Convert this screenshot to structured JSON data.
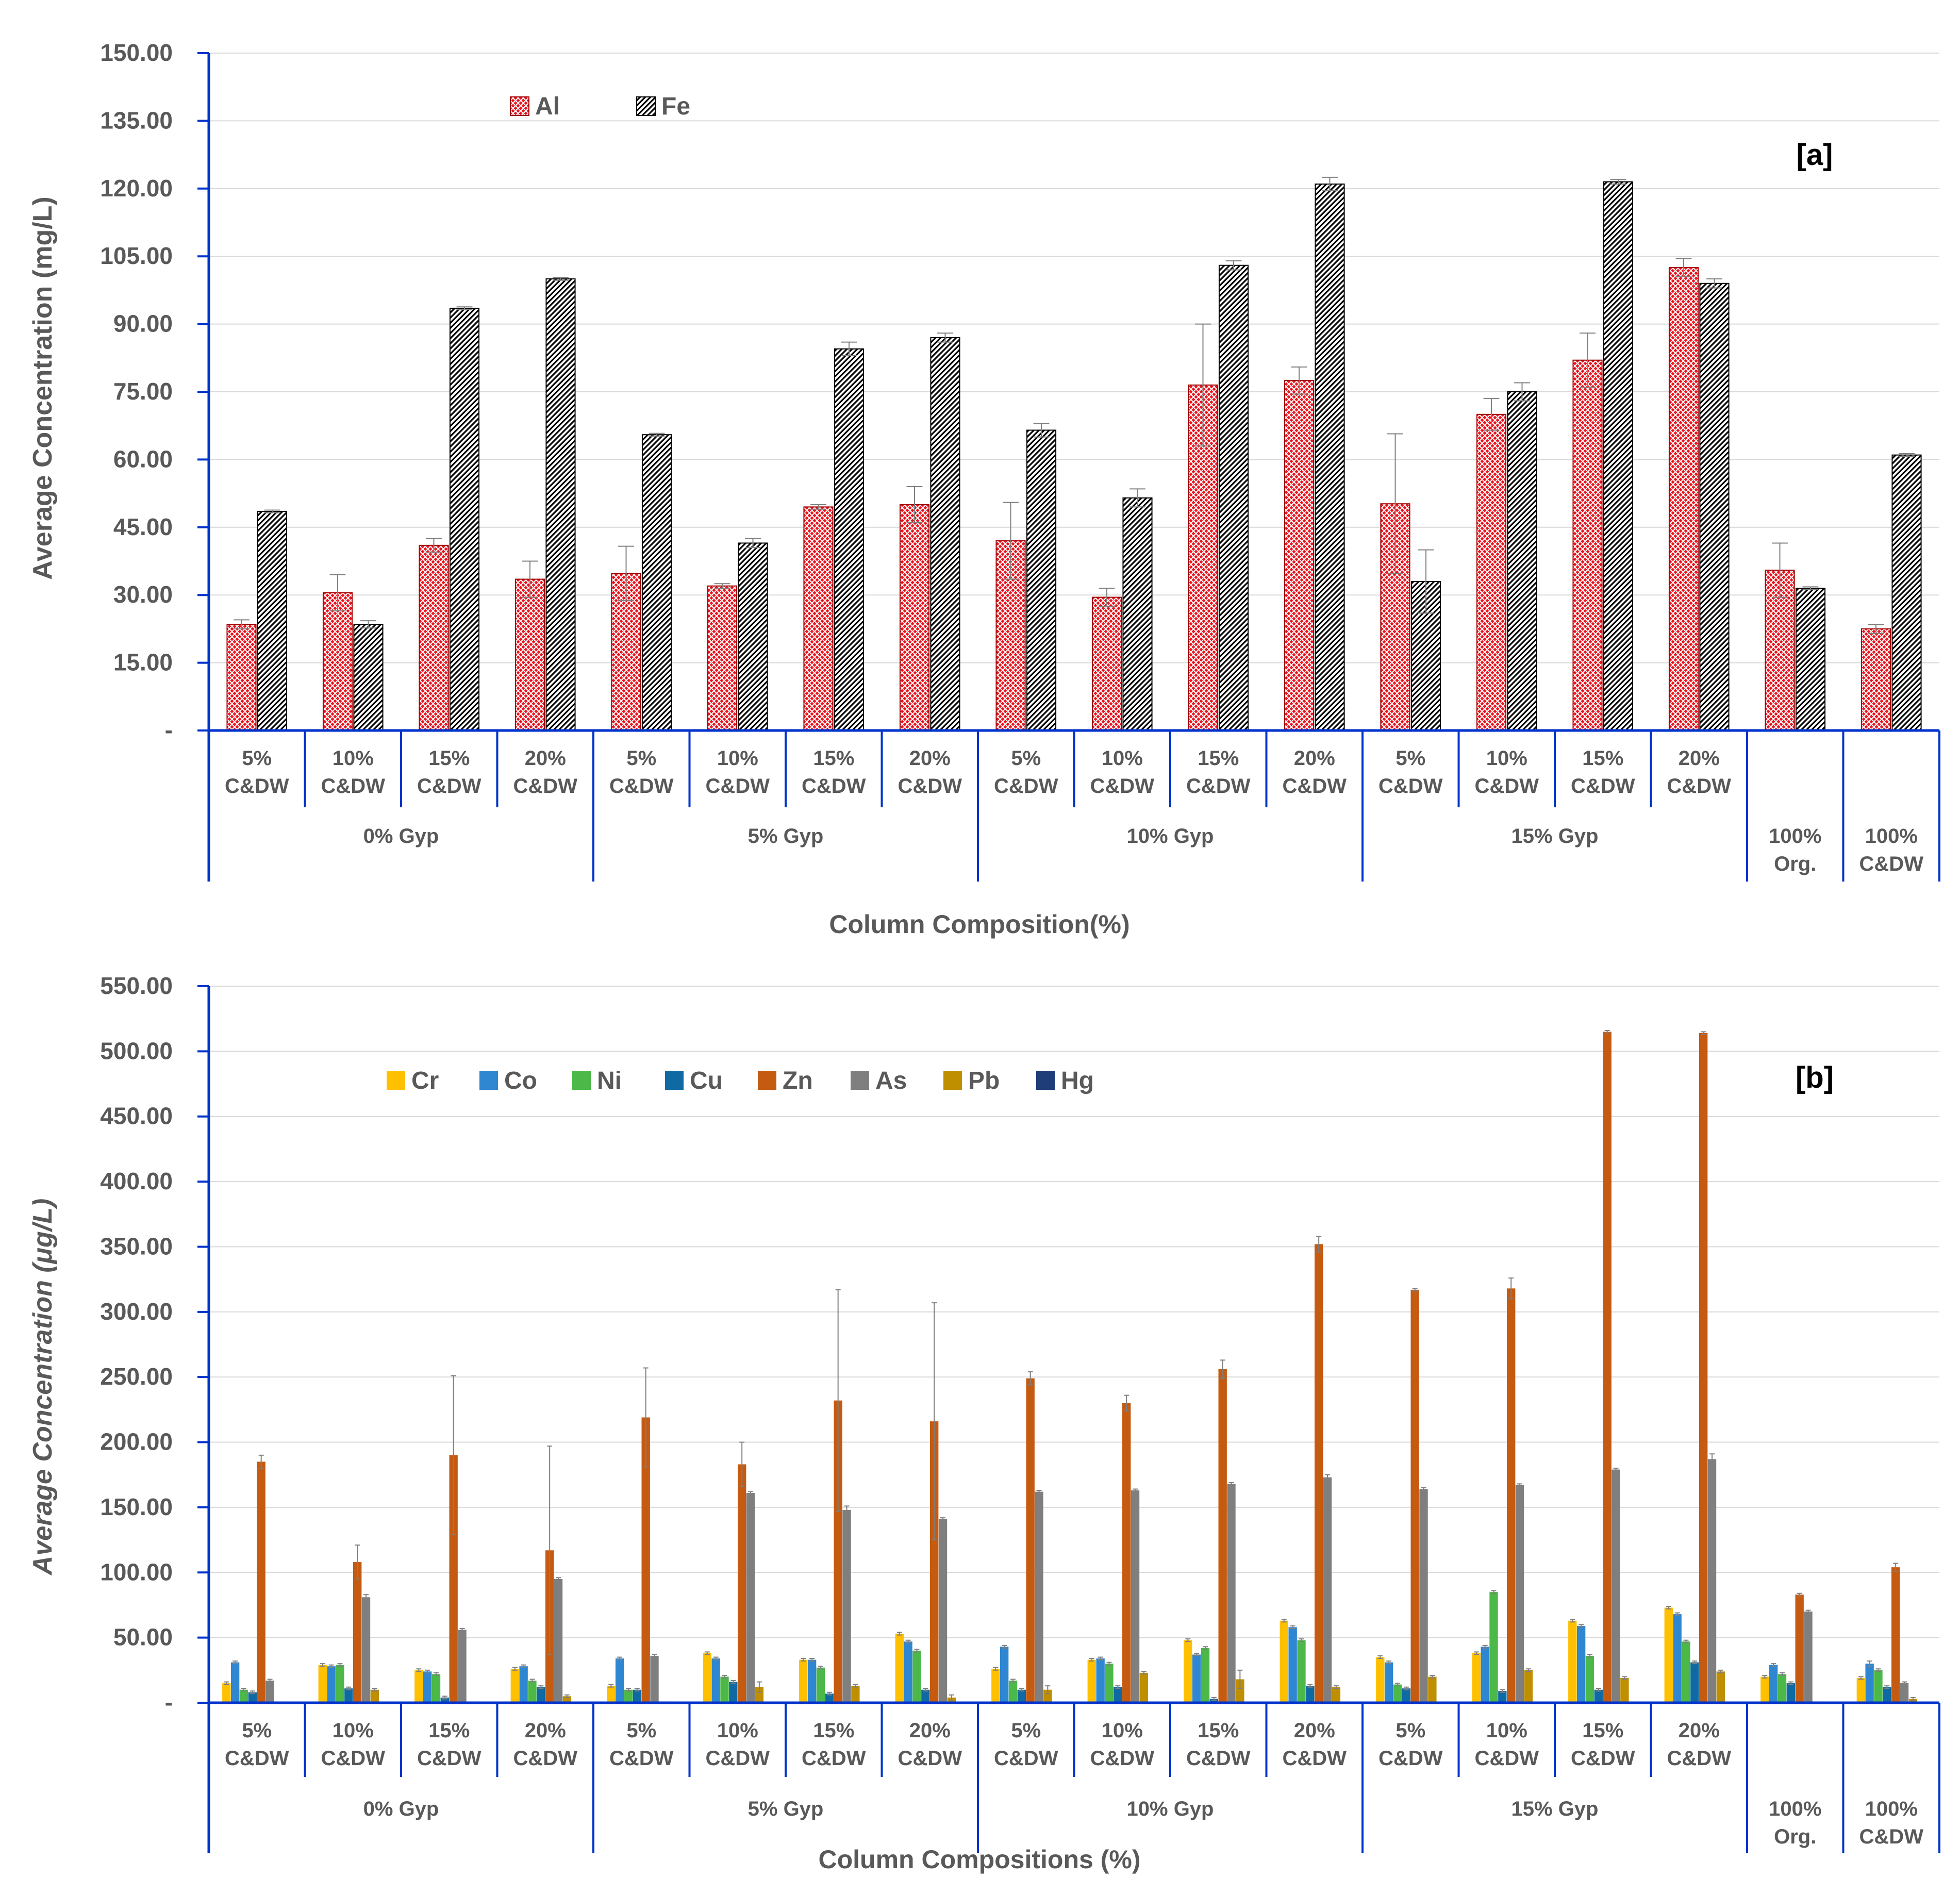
{
  "chart_data": [
    {
      "type": "bar",
      "panel_label": "[a]",
      "ylabel": "Average Concentration (mg/L)",
      "xlabel": "Column Composition(%)",
      "ylim": [
        0,
        150
      ],
      "y_ticks": [
        "-",
        "15.00",
        "30.00",
        "45.00",
        "60.00",
        "75.00",
        "90.00",
        "105.00",
        "120.00",
        "135.00",
        "150.00"
      ],
      "grid": true,
      "legend_position": "top-left",
      "categories": [
        "5% C&DW",
        "10% C&DW",
        "15% C&DW",
        "20% C&DW",
        "5% C&DW",
        "10% C&DW",
        "15% C&DW",
        "20% C&DW",
        "5% C&DW",
        "10% C&DW",
        "15% C&DW",
        "20% C&DW",
        "5% C&DW",
        "10% C&DW",
        "15% C&DW",
        "20% C&DW",
        "",
        ""
      ],
      "groups": [
        {
          "label": "0% Gyp",
          "span": 4
        },
        {
          "label": "5% Gyp",
          "span": 4
        },
        {
          "label": "10% Gyp",
          "span": 4
        },
        {
          "label": "15% Gyp",
          "span": 4
        },
        {
          "label": "100% Org.",
          "span": 1
        },
        {
          "label": "100% C&DW",
          "span": 1
        }
      ],
      "series": [
        {
          "name": "Al",
          "color": "#e8141e",
          "pattern": "red-lattice",
          "values": [
            23.5,
            30.5,
            41.0,
            33.5,
            34.8,
            32.0,
            49.5,
            50.0,
            42.0,
            29.5,
            76.5,
            77.5,
            50.2,
            70.0,
            82.0,
            102.5,
            35.5,
            22.5
          ],
          "errors": [
            1.0,
            4.0,
            1.5,
            4.0,
            6.0,
            0.5,
            0.5,
            4.0,
            8.5,
            2.0,
            13.5,
            3.0,
            15.5,
            3.5,
            6.0,
            2.0,
            6.0,
            1.0
          ]
        },
        {
          "name": "Fe",
          "color": "#000000",
          "pattern": "diagonal-hatch",
          "values": [
            48.5,
            23.5,
            93.5,
            100.0,
            65.5,
            41.5,
            84.5,
            87.0,
            66.5,
            51.5,
            103.0,
            121.0,
            33.0,
            75.0,
            121.5,
            99.0,
            31.5,
            61.0
          ],
          "errors": [
            0.3,
            0.8,
            0.3,
            0.3,
            0.3,
            1.0,
            1.5,
            1.0,
            1.5,
            2.0,
            1.0,
            1.5,
            7.0,
            2.0,
            0.5,
            1.0,
            0.3,
            0.3
          ]
        }
      ]
    },
    {
      "type": "bar",
      "panel_label": "[b]",
      "ylabel": "Average Concentration (μg/L)",
      "xlabel": "Column Compositions (%)",
      "ylim": [
        0,
        550
      ],
      "y_ticks": [
        "-",
        "50.00",
        "100.00",
        "150.00",
        "200.00",
        "250.00",
        "300.00",
        "350.00",
        "400.00",
        "450.00",
        "500.00",
        "550.00"
      ],
      "grid": true,
      "legend_position": "top-left",
      "categories": [
        "5% C&DW",
        "10% C&DW",
        "15% C&DW",
        "20% C&DW",
        "5% C&DW",
        "10% C&DW",
        "15% C&DW",
        "20% C&DW",
        "5% C&DW",
        "10% C&DW",
        "15% C&DW",
        "20% C&DW",
        "5% C&DW",
        "10% C&DW",
        "15% C&DW",
        "20% C&DW",
        "",
        ""
      ],
      "groups": [
        {
          "label": "0% Gyp",
          "span": 4
        },
        {
          "label": "5% Gyp",
          "span": 4
        },
        {
          "label": "10% Gyp",
          "span": 4
        },
        {
          "label": "15% Gyp",
          "span": 4
        },
        {
          "label": "100% Org.",
          "span": 1
        },
        {
          "label": "100% C&DW",
          "span": 1
        }
      ],
      "series": [
        {
          "name": "Cr",
          "color": "#ffc000",
          "values": [
            15,
            29,
            25,
            26,
            13,
            38,
            33,
            53,
            26,
            33,
            48,
            63,
            35,
            38,
            63,
            73,
            20,
            19
          ],
          "errors": [
            1,
            1,
            1,
            1,
            1,
            1,
            1,
            1,
            1,
            1,
            1,
            1,
            1,
            1,
            1,
            1,
            1,
            1
          ]
        },
        {
          "name": "Co",
          "color": "#2f86d1",
          "values": [
            31,
            28,
            24,
            28,
            34,
            34,
            33,
            47,
            43,
            34,
            37,
            58,
            31,
            43,
            59,
            68,
            29,
            30
          ],
          "errors": [
            1,
            1,
            1,
            1,
            1,
            1,
            1,
            1,
            1,
            1,
            1,
            1,
            1,
            1,
            1,
            1,
            1,
            2
          ]
        },
        {
          "name": "Ni",
          "color": "#4cb848",
          "values": [
            10,
            29,
            22,
            17,
            10,
            20,
            27,
            40,
            17,
            30,
            42,
            48,
            14,
            85,
            36,
            47,
            22,
            25
          ],
          "errors": [
            1,
            1,
            1,
            1,
            1,
            1,
            1,
            1,
            1,
            1,
            1,
            1,
            1,
            1,
            1,
            1,
            1,
            1
          ]
        },
        {
          "name": "Cu",
          "color": "#0f6aa3",
          "values": [
            8,
            11,
            4,
            12,
            10,
            16,
            7,
            10,
            10,
            12,
            3,
            13,
            11,
            9,
            10,
            31,
            15,
            12
          ],
          "errors": [
            1,
            1,
            1,
            1,
            1,
            1,
            1,
            1,
            1,
            1,
            1,
            1,
            1,
            1,
            1,
            1,
            1,
            1
          ]
        },
        {
          "name": "Zn",
          "color": "#c55a11",
          "values": [
            185,
            108,
            190,
            117,
            219,
            183,
            232,
            216,
            249,
            230,
            256,
            352,
            317,
            318,
            515,
            514,
            83,
            104
          ],
          "errors": [
            5,
            13,
            61,
            80,
            38,
            17,
            85,
            91,
            5,
            6,
            7,
            6,
            1,
            8,
            1,
            1,
            1,
            3
          ]
        },
        {
          "name": "As",
          "color": "#7f7f7f",
          "values": [
            17,
            81,
            56,
            95,
            36,
            161,
            148,
            141,
            162,
            163,
            168,
            173,
            164,
            167,
            179,
            187,
            70,
            15
          ],
          "errors": [
            1,
            2,
            1,
            1,
            1,
            1,
            3,
            1,
            1,
            1,
            1,
            2,
            1,
            1,
            1,
            4,
            1,
            1
          ]
        },
        {
          "name": "Pb",
          "color": "#bf8f00",
          "values": [
            1,
            10,
            1,
            5,
            1,
            12,
            13,
            4,
            10,
            23,
            18,
            12,
            20,
            25,
            19,
            24,
            1,
            3
          ],
          "errors": [
            0,
            1,
            0,
            1,
            0,
            4,
            1,
            2,
            3,
            1,
            7,
            1,
            1,
            1,
            1,
            1,
            0,
            1
          ]
        },
        {
          "name": "Hg",
          "color": "#1f3d78",
          "values": [
            0,
            0,
            0,
            0,
            0,
            0,
            0,
            0,
            0,
            0,
            0,
            0,
            0,
            0,
            0,
            0,
            0,
            0
          ],
          "errors": [
            0,
            0,
            0,
            0,
            0,
            0,
            0,
            0,
            0,
            0,
            0,
            0,
            0,
            0,
            0,
            0,
            0,
            0
          ]
        }
      ]
    }
  ]
}
